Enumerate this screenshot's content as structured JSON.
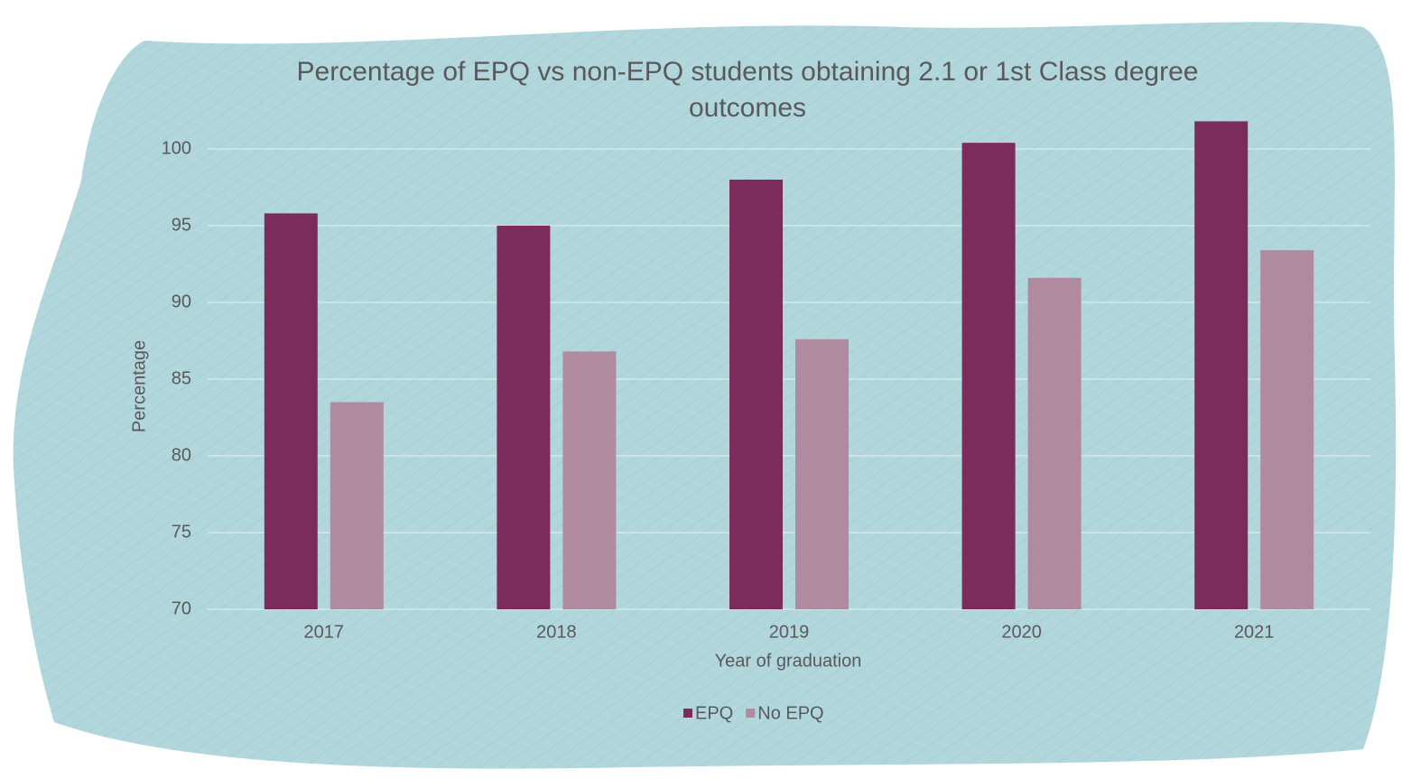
{
  "chart_data": {
    "type": "bar",
    "title": "Percentage of EPQ vs non-EPQ students obtaining 2.1 or 1st Class degree outcomes",
    "x_label": "Year of graduation",
    "y_label": "Percentage",
    "categories": [
      "2017",
      "2018",
      "2019",
      "2020",
      "2021"
    ],
    "series": [
      {
        "name": "EPQ",
        "color": "#7b2c5c",
        "values": [
          95.8,
          95.0,
          98.0,
          100.4,
          101.8
        ]
      },
      {
        "name": "No EPQ",
        "color": "#b08a9e",
        "values": [
          83.5,
          86.8,
          87.6,
          91.6,
          93.4
        ]
      }
    ],
    "ylim": [
      70,
      102
    ],
    "yticks": [
      70,
      75,
      80,
      85,
      90,
      95,
      100
    ],
    "grid": true,
    "legend": "bottom"
  }
}
